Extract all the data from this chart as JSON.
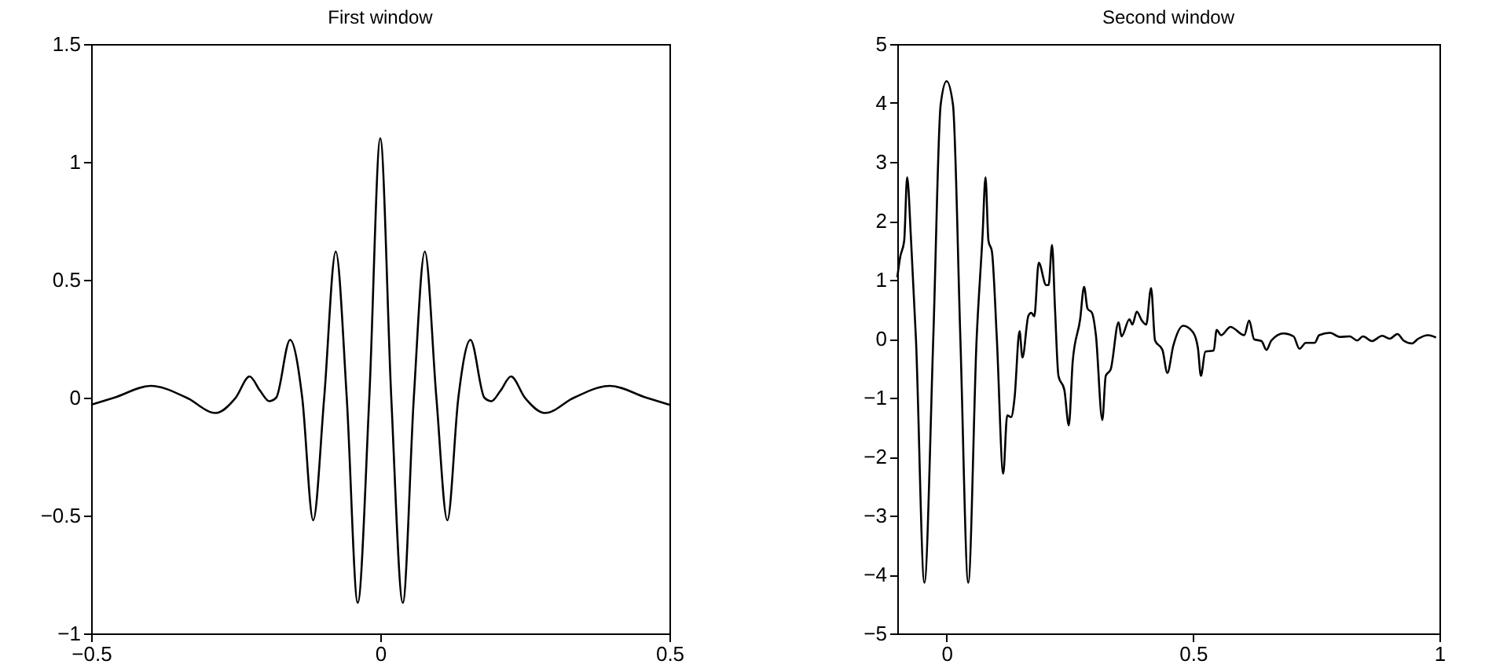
{
  "chart_data": [
    {
      "type": "line",
      "title": "First window",
      "color": "#000000",
      "xlim": [
        -0.5,
        0.5
      ],
      "ylim": [
        -1,
        1.5
      ],
      "xticks": [
        -0.5,
        0,
        0.5
      ],
      "yticks": [
        -1,
        -0.5,
        0,
        0.5,
        1,
        1.5
      ],
      "grid": false,
      "x": [
        -0.5,
        -0.46,
        -0.397,
        -0.335,
        -0.285,
        -0.25,
        -0.226,
        -0.208,
        -0.192,
        -0.18,
        -0.156,
        -0.135,
        -0.116,
        -0.097,
        -0.077,
        -0.058,
        -0.039,
        -0.019,
        0,
        0.019,
        0.039,
        0.058,
        0.077,
        0.097,
        0.116,
        0.135,
        0.156,
        0.18,
        0.192,
        0.208,
        0.226,
        0.25,
        0.285,
        0.335,
        0.397,
        0.46,
        0.5
      ],
      "values": [
        -0.03,
        0,
        0.05,
        0,
        -0.065,
        0,
        0.09,
        0.03,
        -0.015,
        0,
        0.245,
        0,
        -0.52,
        0,
        0.62,
        0,
        -0.87,
        0,
        1.1,
        0,
        -0.87,
        0,
        0.62,
        0,
        -0.52,
        0,
        0.245,
        0,
        -0.015,
        0.03,
        0.09,
        0,
        -0.065,
        0,
        0.05,
        0,
        -0.03
      ]
    },
    {
      "type": "line",
      "title": "Second window",
      "color": "#000000",
      "xlim": [
        -0.1,
        1
      ],
      "ylim": [
        -5,
        5
      ],
      "xticks": [
        0,
        0.5,
        1
      ],
      "yticks": [
        -5,
        -4,
        -3,
        -2,
        -1,
        0,
        1,
        2,
        3,
        4,
        5
      ],
      "grid": false,
      "x": [
        -0.1,
        -0.094,
        -0.086,
        -0.08,
        -0.072,
        -0.062,
        -0.045,
        -0.027,
        -0.012,
        0,
        0.013,
        0.028,
        0.044,
        0.061,
        0.073,
        0.079,
        0.085,
        0.092,
        0.102,
        0.115,
        0.123,
        0.131,
        0.138,
        0.148,
        0.154,
        0.166,
        0.172,
        0.178,
        0.187,
        0.202,
        0.207,
        0.214,
        0.22,
        0.227,
        0.239,
        0.248,
        0.256,
        0.271,
        0.279,
        0.286,
        0.295,
        0.303,
        0.316,
        0.323,
        0.333,
        0.349,
        0.355,
        0.371,
        0.377,
        0.386,
        0.396,
        0.405,
        0.415,
        0.423,
        0.438,
        0.448,
        0.46,
        0.48,
        0.5,
        0.51,
        0.516,
        0.525,
        0.542,
        0.548,
        0.557,
        0.576,
        0.604,
        0.614,
        0.624,
        0.639,
        0.649,
        0.659,
        0.684,
        0.704,
        0.716,
        0.729,
        0.747,
        0.756,
        0.778,
        0.798,
        0.818,
        0.833,
        0.845,
        0.863,
        0.884,
        0.899,
        0.915,
        0.927,
        0.944,
        0.957,
        0.977,
        0.993
      ],
      "values": [
        1.04,
        1.39,
        1.66,
        2.74,
        1.66,
        -0.03,
        -4.14,
        0,
        3.97,
        4.37,
        3.97,
        0,
        -4.14,
        0,
        1.75,
        2.74,
        1.66,
        1.48,
        0,
        -2.29,
        -1.3,
        -1.33,
        -1,
        0.13,
        -0.32,
        0.39,
        0.44,
        0.38,
        1.29,
        0.91,
        0.91,
        1.59,
        0.51,
        -0.63,
        -0.87,
        -1.47,
        -0.38,
        0.33,
        0.88,
        0.51,
        0.44,
        0.06,
        -1.38,
        -0.63,
        -0.52,
        0.28,
        0.04,
        0.33,
        0.24,
        0.46,
        0.31,
        0.24,
        0.86,
        -0.03,
        -0.19,
        -0.58,
        -0.12,
        0.22,
        0.11,
        -0.16,
        -0.63,
        -0.22,
        -0.2,
        0.15,
        0.06,
        0.2,
        0.06,
        0.31,
        -0.01,
        -0.04,
        -0.19,
        -0.03,
        0.09,
        0.04,
        -0.17,
        -0.07,
        -0.07,
        0.06,
        0.1,
        0.03,
        0.04,
        -0.03,
        0.04,
        -0.04,
        0.05,
        0,
        0.08,
        -0.03,
        -0.08,
        0,
        0.06,
        0.02
      ]
    }
  ]
}
